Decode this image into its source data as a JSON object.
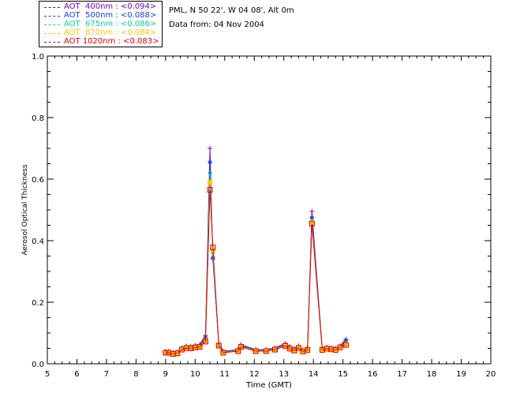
{
  "info": {
    "site": "PML, N 50 22', W 04 08', Alt 0m",
    "date": "Data from: 04 Nov 2004"
  },
  "legend": [
    {
      "label": "AOT  400nm : <0.094>",
      "color": "#7a00b4"
    },
    {
      "label": "AOT  500nm : <0.088>",
      "color": "#1e3cdc"
    },
    {
      "label": "AOT  675nm : <0.086>",
      "color": "#00d2a0"
    },
    {
      "label": "AOT  870nm : <0.084>",
      "color": "#ffc800"
    },
    {
      "label": "AOT 1020nm : <0.083>",
      "color": "#dc0000"
    }
  ],
  "chart_data": {
    "type": "line",
    "xlabel": "Time (GMT)",
    "ylabel": "Aerosol Optical Thickness",
    "xlim": [
      5,
      20
    ],
    "ylim": [
      0.0,
      1.0
    ],
    "xticks": [
      5,
      6,
      7,
      8,
      9,
      10,
      11,
      12,
      13,
      14,
      15,
      16,
      17,
      18,
      19,
      20
    ],
    "yticks": [
      0.0,
      0.2,
      0.4,
      0.6,
      0.8,
      1.0
    ],
    "ytick_labels": [
      "0.0",
      "0.2",
      "0.4",
      "0.6",
      "0.8",
      "1.0"
    ],
    "x": [
      9.0,
      9.1,
      9.25,
      9.4,
      9.55,
      9.7,
      9.85,
      10.0,
      10.15,
      10.35,
      10.5,
      10.6,
      10.8,
      10.95,
      11.45,
      11.55,
      12.05,
      12.4,
      12.7,
      13.05,
      13.2,
      13.35,
      13.5,
      13.65,
      13.8,
      13.95,
      14.3,
      14.45,
      14.6,
      14.75,
      14.9,
      15.1
    ],
    "series": [
      {
        "name": "AOT 400nm",
        "color": "#7a00b4",
        "values": [
          0.04,
          0.04,
          0.036,
          0.038,
          0.052,
          0.058,
          0.057,
          0.06,
          0.062,
          0.092,
          0.7,
          0.34,
          0.066,
          0.04,
          0.046,
          0.062,
          0.046,
          0.046,
          0.052,
          0.066,
          0.056,
          0.05,
          0.058,
          0.044,
          0.05,
          0.495,
          0.05,
          0.054,
          0.052,
          0.05,
          0.058,
          0.08
        ]
      },
      {
        "name": "AOT 500nm",
        "color": "#1e3cdc",
        "values": [
          0.038,
          0.038,
          0.034,
          0.036,
          0.05,
          0.055,
          0.054,
          0.057,
          0.059,
          0.085,
          0.655,
          0.345,
          0.063,
          0.038,
          0.044,
          0.059,
          0.044,
          0.044,
          0.05,
          0.062,
          0.053,
          0.047,
          0.055,
          0.042,
          0.048,
          0.475,
          0.048,
          0.052,
          0.05,
          0.048,
          0.056,
          0.075
        ]
      },
      {
        "name": "AOT 675nm",
        "color": "#00d2a0",
        "values": [
          0.037,
          0.037,
          0.033,
          0.035,
          0.048,
          0.053,
          0.052,
          0.055,
          0.057,
          0.078,
          0.62,
          0.36,
          0.061,
          0.037,
          0.043,
          0.057,
          0.043,
          0.043,
          0.048,
          0.06,
          0.051,
          0.045,
          0.053,
          0.041,
          0.047,
          0.465,
          0.047,
          0.051,
          0.049,
          0.047,
          0.055,
          0.066
        ]
      },
      {
        "name": "AOT 870nm",
        "color": "#ffc800",
        "values": [
          0.036,
          0.036,
          0.032,
          0.034,
          0.047,
          0.052,
          0.051,
          0.054,
          0.056,
          0.074,
          0.59,
          0.37,
          0.06,
          0.036,
          0.042,
          0.056,
          0.042,
          0.042,
          0.047,
          0.059,
          0.05,
          0.044,
          0.052,
          0.04,
          0.046,
          0.46,
          0.046,
          0.05,
          0.048,
          0.046,
          0.054,
          0.063
        ]
      },
      {
        "name": "AOT 1020nm",
        "color": "#dc0000",
        "values": [
          0.036,
          0.036,
          0.032,
          0.034,
          0.046,
          0.051,
          0.05,
          0.053,
          0.055,
          0.072,
          0.565,
          0.378,
          0.059,
          0.036,
          0.041,
          0.055,
          0.041,
          0.041,
          0.046,
          0.058,
          0.049,
          0.043,
          0.051,
          0.04,
          0.045,
          0.455,
          0.045,
          0.049,
          0.047,
          0.045,
          0.053,
          0.061
        ]
      }
    ]
  }
}
